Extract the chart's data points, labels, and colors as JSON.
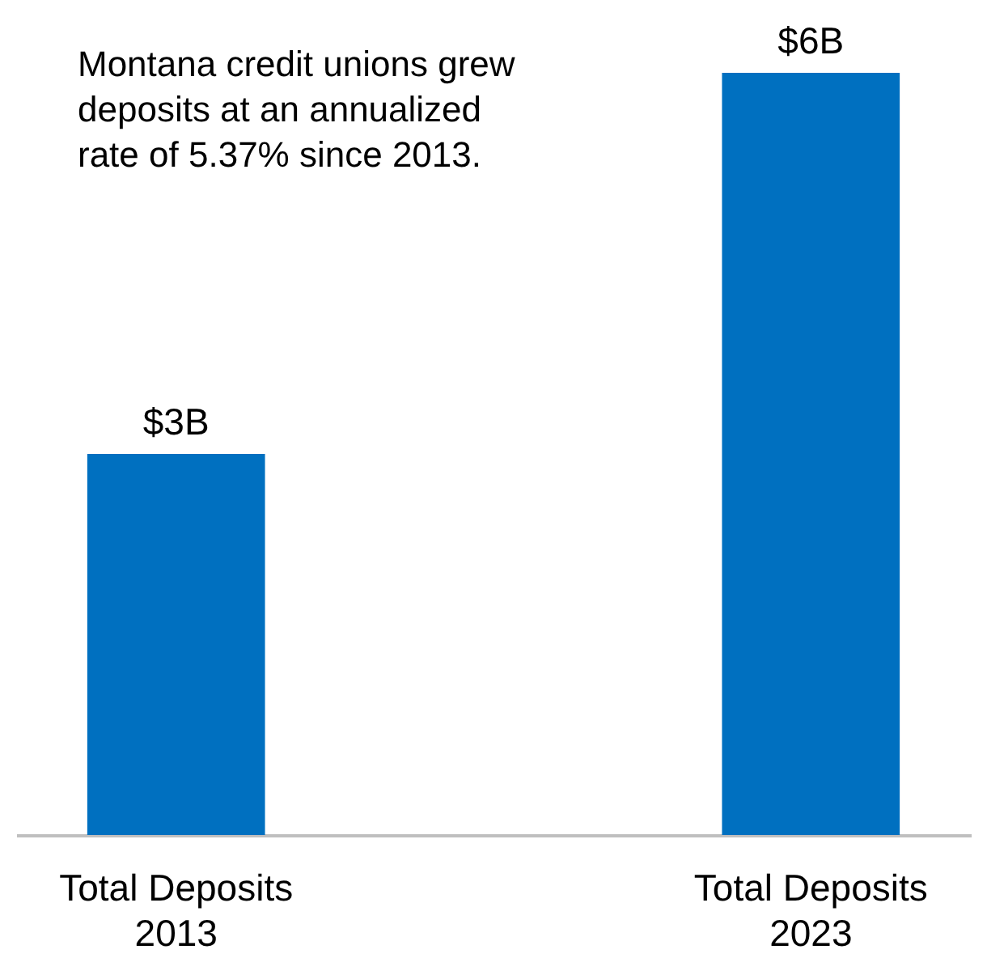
{
  "chart_data": {
    "type": "bar",
    "categories": [
      "Total Deposits 2013",
      "Total Deposits 2023"
    ],
    "values": [
      3,
      6
    ],
    "color": "#0070c0",
    "value_labels": [
      "$3B",
      "$6B"
    ],
    "annotations": [
      "Montana credit unions grew deposits at an annualized rate of 5.37% since 2013."
    ]
  }
}
